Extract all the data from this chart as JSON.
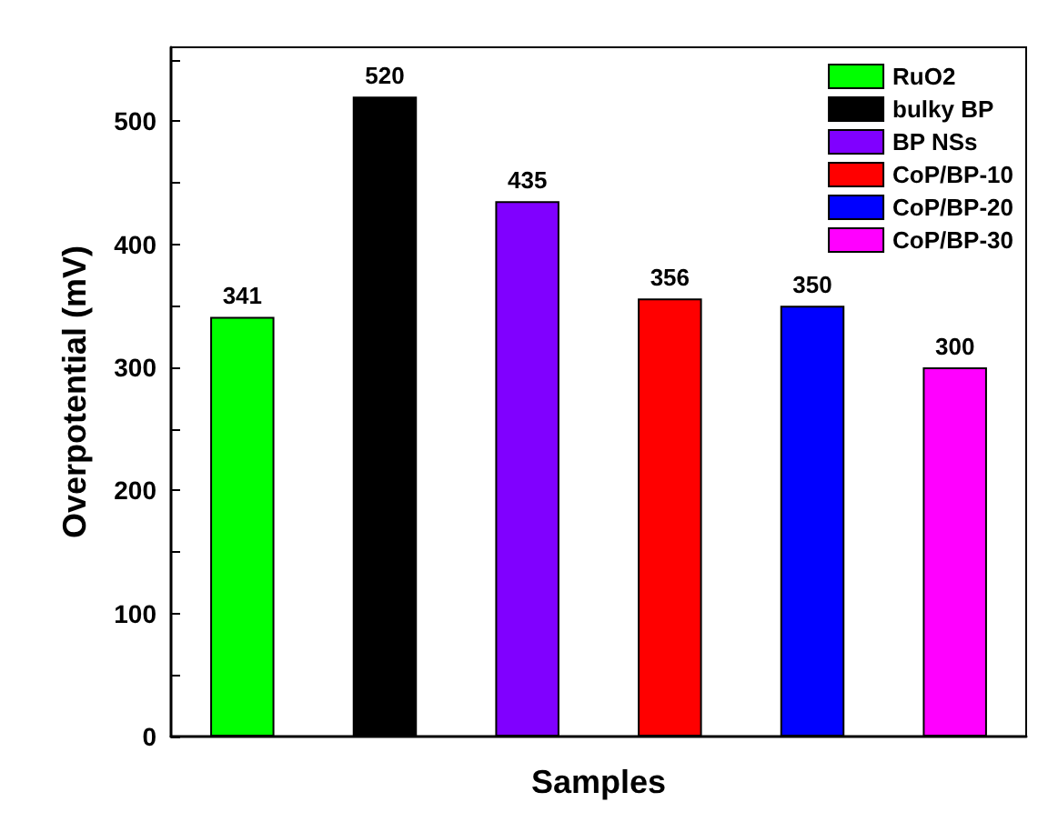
{
  "chart_data": {
    "type": "bar",
    "xlabel": "Samples",
    "ylabel": "Overpotential (mV)",
    "categories": [
      null,
      null,
      null,
      null,
      null,
      null
    ],
    "series": [
      {
        "name": "RuO2",
        "color": "#00ff00",
        "values": [
          341,
          null,
          null,
          null,
          null,
          null
        ]
      },
      {
        "name": "bulky BP",
        "color": "#000000",
        "values": [
          null,
          520,
          null,
          null,
          null,
          null
        ]
      },
      {
        "name": "BP NSs",
        "color": "#8000ff",
        "values": [
          null,
          null,
          435,
          null,
          null,
          null
        ]
      },
      {
        "name": "CoP/BP-10",
        "color": "#ff0000",
        "values": [
          null,
          null,
          null,
          356,
          null,
          null
        ]
      },
      {
        "name": "CoP/BP-20",
        "color": "#0000ff",
        "values": [
          null,
          null,
          null,
          null,
          350,
          null
        ]
      },
      {
        "name": "CoP/BP-30",
        "color": "#ff00ff",
        "values": [
          null,
          null,
          null,
          null,
          null,
          300
        ]
      }
    ],
    "ylim": [
      0,
      560
    ],
    "yticks": [
      0,
      {
        "value": 50,
        "label": null
      },
      100,
      {
        "value": 150,
        "label": null
      },
      200,
      {
        "value": 250,
        "label": null
      },
      300,
      {
        "value": 350,
        "label": null
      },
      400,
      {
        "value": 450,
        "label": null
      },
      500,
      {
        "value": 550,
        "label": null
      }
    ],
    "data_labels": true,
    "legend": "top right",
    "grid": false
  }
}
